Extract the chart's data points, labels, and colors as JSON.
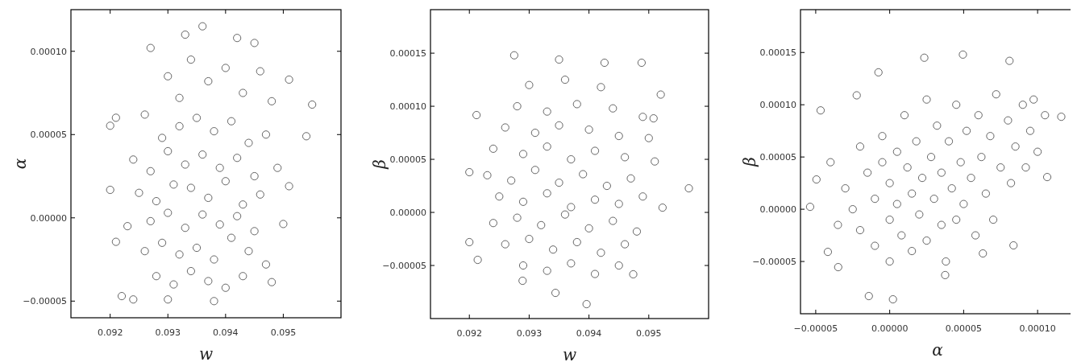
{
  "chart_data": [
    {
      "type": "scatter",
      "xlabel": "w",
      "ylabel": "α",
      "marker": "circle",
      "xlim": [
        0.09132,
        0.096
      ],
      "ylim": [
        -6e-05,
        0.000125
      ],
      "xticks": [
        0.092,
        0.093,
        0.094,
        0.095
      ],
      "yticks": [
        {
          "value": -5e-05,
          "label": "−0.00005"
        },
        {
          "value": 0,
          "label": "0.00000"
        },
        {
          "value": 5e-05,
          "label": "0.00005"
        },
        {
          "value": 0.0001,
          "label": "0.00010"
        }
      ],
      "series": [
        {
          "color": "#ffffff",
          "x": [
            0.092,
            0.0921,
            0.092,
            0.0921,
            0.0922,
            0.0924,
            0.0927,
            0.0936,
            0.0942,
            0.0955,
            0.0954,
            0.095,
            0.0948,
            0.0938,
            0.093,
            0.0951,
            0.0951,
            0.093,
            0.0932,
            0.0934,
            0.0937,
            0.094,
            0.0943,
            0.0946,
            0.0948,
            0.0926,
            0.0929,
            0.0932,
            0.0935,
            0.0938,
            0.0941,
            0.0944,
            0.0947,
            0.0924,
            0.0927,
            0.093,
            0.0933,
            0.0936,
            0.0939,
            0.0942,
            0.0945,
            0.0949,
            0.0925,
            0.0928,
            0.0931,
            0.0934,
            0.0937,
            0.094,
            0.0943,
            0.0946,
            0.0923,
            0.0927,
            0.093,
            0.0933,
            0.0936,
            0.0939,
            0.0942,
            0.0945,
            0.0926,
            0.0929,
            0.0932,
            0.0935,
            0.0938,
            0.0941,
            0.0944,
            0.0947,
            0.0928,
            0.0931,
            0.0934,
            0.0937,
            0.094,
            0.0943,
            0.0933,
            0.0945
          ],
          "values": [
            5.53e-05,
            6.01e-05,
            1.68e-05,
            -1.44e-05,
            -4.7e-05,
            -4.9e-05,
            0.000102,
            0.000115,
            0.000108,
            6.8e-05,
            4.9e-05,
            -3.7e-06,
            -3.86e-05,
            -5e-05,
            -4.9e-05,
            1.9e-05,
            8.3e-05,
            8.5e-05,
            7.2e-05,
            9.5e-05,
            8.2e-05,
            9e-05,
            7.5e-05,
            8.8e-05,
            7e-05,
            6.2e-05,
            4.8e-05,
            5.5e-05,
            6e-05,
            5.2e-05,
            5.8e-05,
            4.5e-05,
            5e-05,
            3.5e-05,
            2.8e-05,
            4e-05,
            3.2e-05,
            3.8e-05,
            3e-05,
            3.6e-05,
            2.5e-05,
            3e-05,
            1.5e-05,
            1e-05,
            2e-05,
            1.8e-05,
            1.2e-05,
            2.2e-05,
            8e-06,
            1.4e-05,
            -5e-06,
            -2e-06,
            3e-06,
            -6e-06,
            2e-06,
            -4e-06,
            1e-06,
            -8e-06,
            -2e-05,
            -1.5e-05,
            -2.2e-05,
            -1.8e-05,
            -2.5e-05,
            -1.2e-05,
            -2e-05,
            -2.8e-05,
            -3.5e-05,
            -4e-05,
            -3.2e-05,
            -3.8e-05,
            -4.2e-05,
            -3.5e-05,
            0.00011,
            0.000105
          ]
        }
      ]
    },
    {
      "type": "scatter",
      "xlabel": "w",
      "ylabel": "β",
      "marker": "circle",
      "xlim": [
        0.09135,
        0.096
      ],
      "ylim": [
        -0.0001,
        0.000191
      ],
      "xticks": [
        0.092,
        0.093,
        0.094,
        0.095
      ],
      "yticks": [
        {
          "value": -5e-05,
          "label": "−0.00005"
        },
        {
          "value": 0,
          "label": "0.00000"
        },
        {
          "value": 5e-05,
          "label": "0.00005"
        },
        {
          "value": 0.0001,
          "label": "0.00010"
        },
        {
          "value": 0.00015,
          "label": "0.00015"
        }
      ],
      "series": [
        {
          "color": "#ffffff",
          "x": [
            0.09275,
            0.0935,
            0.09426,
            0.09488,
            0.09212,
            0.092,
            0.092,
            0.09214,
            0.09567,
            0.09523,
            0.09474,
            0.09396,
            0.09344,
            0.09289,
            0.09508,
            0.0952,
            0.093,
            0.0936,
            0.0942,
            0.0928,
            0.0933,
            0.0938,
            0.0944,
            0.0949,
            0.0926,
            0.0931,
            0.0935,
            0.094,
            0.0945,
            0.095,
            0.0924,
            0.0929,
            0.0933,
            0.0937,
            0.0941,
            0.0946,
            0.0951,
            0.0923,
            0.0927,
            0.0931,
            0.0935,
            0.0939,
            0.0943,
            0.0947,
            0.0925,
            0.0929,
            0.0933,
            0.0937,
            0.0941,
            0.0945,
            0.0949,
            0.0924,
            0.0928,
            0.0932,
            0.0936,
            0.094,
            0.0944,
            0.0948,
            0.0926,
            0.093,
            0.0934,
            0.0938,
            0.0942,
            0.0946,
            0.0929,
            0.0933,
            0.0937,
            0.0941,
            0.0945
          ],
          "values": [
            0.000148,
            0.000144,
            0.000141,
            0.000141,
            9.17e-05,
            3.79e-05,
            -2.8e-05,
            -4.47e-05,
            2.27e-05,
            4.5e-06,
            -5.83e-05,
            -8.64e-05,
            -7.58e-05,
            -6.44e-05,
            8.86e-05,
            0.000111,
            0.00012,
            0.000125,
            0.000118,
            0.0001,
            9.5e-05,
            0.000102,
            9.8e-05,
            9e-05,
            8e-05,
            7.5e-05,
            8.2e-05,
            7.8e-05,
            7.2e-05,
            7e-05,
            6e-05,
            5.5e-05,
            6.2e-05,
            5e-05,
            5.8e-05,
            5.2e-05,
            4.8e-05,
            3.5e-05,
            3e-05,
            4e-05,
            2.8e-05,
            3.6e-05,
            2.5e-05,
            3.2e-05,
            1.5e-05,
            1e-05,
            1.8e-05,
            5e-06,
            1.2e-05,
            8e-06,
            1.5e-05,
            -1e-05,
            -5e-06,
            -1.2e-05,
            -2e-06,
            -1.5e-05,
            -8e-06,
            -1.8e-05,
            -3e-05,
            -2.5e-05,
            -3.5e-05,
            -2.8e-05,
            -3.8e-05,
            -3e-05,
            -5e-05,
            -5.5e-05,
            -4.8e-05,
            -5.8e-05,
            -5e-05
          ]
        }
      ]
    },
    {
      "type": "scatter",
      "xlabel": "α",
      "ylabel": "β",
      "marker": "circle",
      "xlim": [
        -6.03e-05,
        0.000125
      ],
      "ylim": [
        -0.0001,
        0.000191
      ],
      "xticks": [
        {
          "value": -5e-05,
          "label": "−0.00005"
        },
        {
          "value": 0,
          "label": "0.00000"
        },
        {
          "value": 5e-05,
          "label": "0.00005"
        },
        {
          "value": 0.0001,
          "label": "0.00010"
        }
      ],
      "yticks": [
        {
          "value": -5e-05,
          "label": "−0.00005"
        },
        {
          "value": 0,
          "label": "0.00000"
        },
        {
          "value": 5e-05,
          "label": "0.00005"
        },
        {
          "value": 0.0001,
          "label": "0.00010"
        },
        {
          "value": 0.00015,
          "label": "0.00015"
        }
      ],
      "series": [
        {
          "color": "#ffffff",
          "x": [
            -5.38e-05,
            -4.95e-05,
            -4.67e-05,
            -4.18e-05,
            -2.23e-05,
            -7.6e-06,
            2.34e-05,
            4.95e-05,
            8.1e-05,
            0.000116,
            0.0001065,
            8.37e-05,
            6.3e-05,
            3.75e-05,
            2.2e-06,
            -1.41e-05,
            -3.48e-05,
            9.73e-05,
            -3e-05,
            -2.5e-05,
            -2e-05,
            -2e-05,
            -1.5e-05,
            -1e-05,
            -1e-05,
            -5e-06,
            -5e-06,
            0,
            0,
            0,
            5e-06,
            5e-06,
            8e-06,
            1e-05,
            1.2e-05,
            1.5e-05,
            1.5e-05,
            1.8e-05,
            2e-05,
            2.2e-05,
            2.5e-05,
            2.5e-05,
            2.8e-05,
            3e-05,
            3.2e-05,
            3.5e-05,
            3.5e-05,
            3.8e-05,
            4e-05,
            4.2e-05,
            4.5e-05,
            4.5e-05,
            4.8e-05,
            5e-05,
            5.2e-05,
            5.5e-05,
            5.8e-05,
            6e-05,
            6.2e-05,
            6.5e-05,
            6.8e-05,
            7e-05,
            7.2e-05,
            7.5e-05,
            8e-05,
            8.2e-05,
            8.5e-05,
            9e-05,
            9.2e-05,
            9.5e-05,
            0.0001,
            0.000105,
            -4e-05,
            -3.5e-05
          ],
          "values": [
            2.3e-06,
            2.85e-05,
            9.46e-05,
            -4.08e-05,
            0.000109,
            0.000131,
            0.000145,
            0.000148,
            0.000142,
            8.85e-05,
            3.08e-05,
            -3.46e-05,
            -4.23e-05,
            -6.3e-05,
            -8.62e-05,
            -8.31e-05,
            -5.54e-05,
            0.000105,
            2e-05,
            0,
            -2e-05,
            6e-05,
            3.5e-05,
            1e-05,
            -3.5e-05,
            7e-05,
            4.5e-05,
            2.5e-05,
            -1e-05,
            -5e-05,
            5.5e-05,
            5e-06,
            -2.5e-05,
            9e-05,
            4e-05,
            1.5e-05,
            -4e-05,
            6.5e-05,
            -5e-06,
            3e-05,
            0.000105,
            -3e-05,
            5e-05,
            1e-05,
            8e-05,
            -1.5e-05,
            3.5e-05,
            -5e-05,
            6.5e-05,
            2e-05,
            0.0001,
            -1e-05,
            4.5e-05,
            5e-06,
            7.5e-05,
            3e-05,
            -2.5e-05,
            9e-05,
            5e-05,
            1.5e-05,
            7e-05,
            -1e-05,
            0.00011,
            4e-05,
            8.5e-05,
            2.5e-05,
            6e-05,
            0.0001,
            4e-05,
            7.5e-05,
            5.5e-05,
            9e-05,
            4.5e-05,
            -1.5e-05
          ]
        }
      ]
    }
  ]
}
